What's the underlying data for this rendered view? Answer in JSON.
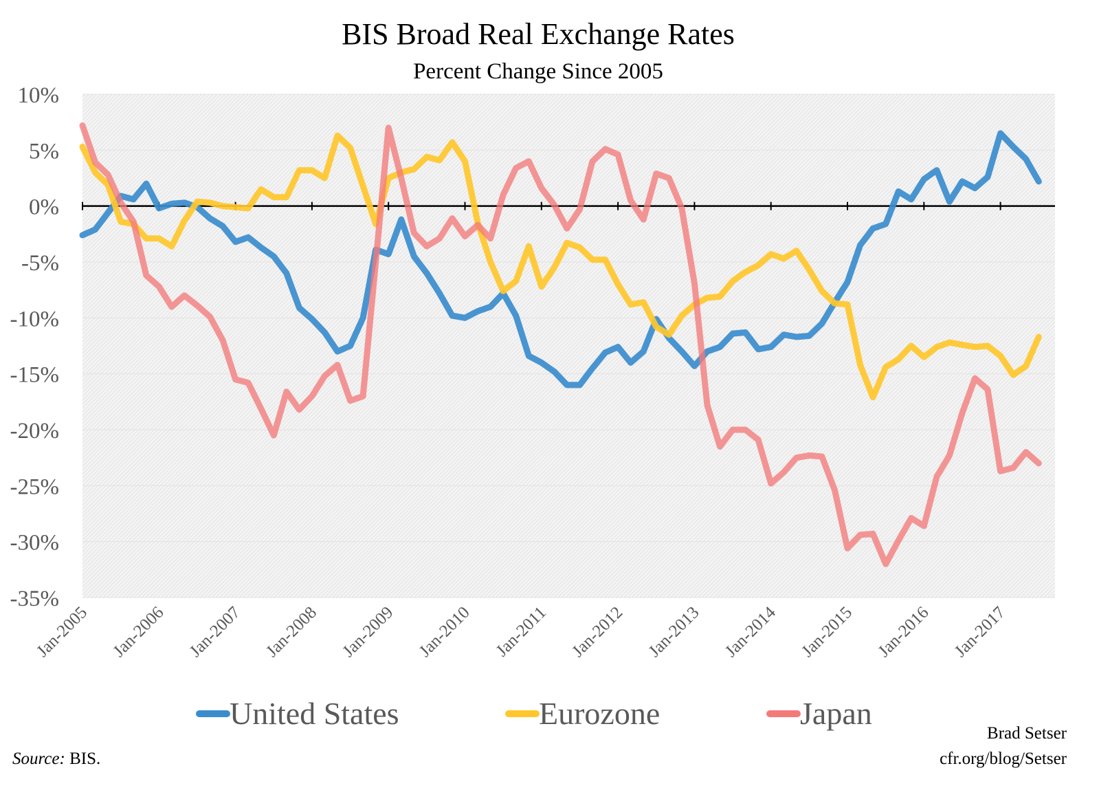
{
  "chart_data": {
    "type": "line",
    "title": "BIS Broad Real Exchange Rates",
    "subtitle": "Percent Change Since 2005",
    "xlabel": "",
    "ylabel": "",
    "ylim": [
      -35,
      10
    ],
    "y_ticks": [
      "10%",
      "5%",
      "0%",
      "-5%",
      "-10%",
      "-15%",
      "-20%",
      "-25%",
      "-30%",
      "-35%"
    ],
    "y_tick_values": [
      10,
      5,
      0,
      -5,
      -10,
      -15,
      -20,
      -25,
      -30,
      -35
    ],
    "x_ticks": [
      "Jan-2005",
      "Jan-2006",
      "Jan-2007",
      "Jan-2008",
      "Jan-2009",
      "Jan-2010",
      "Jan-2011",
      "Jan-2012",
      "Jan-2013",
      "Jan-2014",
      "Jan-2015",
      "Jan-2016",
      "Jan-2017"
    ],
    "grid": true,
    "background": "hatched light gray",
    "legend_position": "bottom",
    "x": [
      "2005-01",
      "2005-03",
      "2005-05",
      "2005-07",
      "2005-09",
      "2005-11",
      "2006-01",
      "2006-03",
      "2006-05",
      "2006-07",
      "2006-09",
      "2006-11",
      "2007-01",
      "2007-03",
      "2007-05",
      "2007-07",
      "2007-09",
      "2007-11",
      "2008-01",
      "2008-03",
      "2008-05",
      "2008-07",
      "2008-09",
      "2008-11",
      "2009-01",
      "2009-03",
      "2009-05",
      "2009-07",
      "2009-09",
      "2009-11",
      "2010-01",
      "2010-03",
      "2010-05",
      "2010-07",
      "2010-09",
      "2010-11",
      "2011-01",
      "2011-03",
      "2011-05",
      "2011-07",
      "2011-09",
      "2011-11",
      "2012-01",
      "2012-03",
      "2012-05",
      "2012-07",
      "2012-09",
      "2012-11",
      "2013-01",
      "2013-03",
      "2013-05",
      "2013-07",
      "2013-09",
      "2013-11",
      "2014-01",
      "2014-03",
      "2014-05",
      "2014-07",
      "2014-09",
      "2014-11",
      "2015-01",
      "2015-03",
      "2015-05",
      "2015-07",
      "2015-09",
      "2015-11",
      "2016-01",
      "2016-03",
      "2016-05",
      "2016-07",
      "2016-09",
      "2016-11",
      "2017-01",
      "2017-03",
      "2017-05",
      "2017-07"
    ],
    "series": [
      {
        "name": "United States",
        "color": "#3a8ccd",
        "values": [
          -2.6,
          -2.1,
          -0.6,
          0.9,
          0.6,
          2.0,
          -0.2,
          0.2,
          0.3,
          -0.1,
          -1.1,
          -1.8,
          -3.2,
          -2.8,
          -3.7,
          -4.5,
          -6.0,
          -9.1,
          -10.1,
          -11.3,
          -13.0,
          -12.5,
          -10.0,
          -3.9,
          -4.3,
          -1.2,
          -4.5,
          -6.0,
          -7.8,
          -9.8,
          -10.0,
          -9.4,
          -9.0,
          -7.8,
          -9.8,
          -13.4,
          -14.0,
          -14.8,
          -16.0,
          -16.0,
          -14.5,
          -13.1,
          -12.6,
          -14.0,
          -13.0,
          -10.1,
          -11.8,
          -13.0,
          -14.3,
          -13.0,
          -12.6,
          -11.4,
          -11.3,
          -12.8,
          -12.6,
          -11.5,
          -11.7,
          -11.6,
          -10.5,
          -8.6,
          -6.8,
          -3.5,
          -2.0,
          -1.6,
          1.3,
          0.6,
          2.4,
          3.2,
          0.4,
          2.2,
          1.6,
          2.6,
          6.5,
          5.3,
          4.2,
          2.2
        ]
      },
      {
        "name": "Eurozone",
        "color": "#ffc72c",
        "values": [
          5.3,
          3.0,
          1.9,
          -1.4,
          -1.6,
          -2.9,
          -2.9,
          -3.6,
          -1.3,
          0.4,
          0.3,
          0.0,
          -0.1,
          -0.2,
          1.5,
          0.8,
          0.8,
          3.2,
          3.2,
          2.5,
          6.3,
          5.2,
          1.8,
          -1.6,
          2.5,
          3.0,
          3.3,
          4.4,
          4.1,
          5.7,
          4.0,
          -1.5,
          -5.0,
          -7.6,
          -6.7,
          -3.6,
          -7.2,
          -5.5,
          -3.3,
          -3.7,
          -4.8,
          -4.8,
          -7.0,
          -8.8,
          -8.6,
          -10.8,
          -11.5,
          -9.8,
          -8.8,
          -8.2,
          -8.1,
          -6.7,
          -5.9,
          -5.3,
          -4.3,
          -4.7,
          -4.0,
          -5.7,
          -7.6,
          -8.7,
          -8.8,
          -14.2,
          -17.1,
          -14.4,
          -13.7,
          -12.5,
          -13.5,
          -12.6,
          -12.2,
          -12.4,
          -12.6,
          -12.5,
          -13.4,
          -15.1,
          -14.3,
          -11.7
        ]
      },
      {
        "name": "Japan",
        "color": "#f47a7a",
        "values": [
          7.2,
          3.9,
          2.8,
          0.3,
          -1.4,
          -6.2,
          -7.2,
          -9.0,
          -8.0,
          -8.9,
          -9.9,
          -12.0,
          -15.5,
          -15.8,
          -18.1,
          -20.5,
          -16.6,
          -18.2,
          -17.0,
          -15.2,
          -14.2,
          -17.4,
          -17.0,
          -5.0,
          7.0,
          2.5,
          -2.4,
          -3.6,
          -2.9,
          -1.1,
          -2.7,
          -1.7,
          -2.9,
          1.0,
          3.4,
          4.0,
          1.6,
          0.1,
          -2.0,
          -0.3,
          4.0,
          5.1,
          4.6,
          0.5,
          -1.2,
          2.9,
          2.5,
          -0.2,
          -6.9,
          -17.8,
          -21.5,
          -20.0,
          -20.0,
          -20.9,
          -24.8,
          -23.8,
          -22.5,
          -22.3,
          -22.4,
          -25.4,
          -30.6,
          -29.4,
          -29.3,
          -32.0,
          -29.9,
          -27.9,
          -28.6,
          -24.2,
          -22.3,
          -18.5,
          -15.4,
          -16.4,
          -23.7,
          -23.4,
          -22.0,
          -23.0
        ]
      }
    ]
  },
  "credits": {
    "author": "Brad Setser",
    "url": "cfr.org/blog/Setser",
    "source_label": "Source:",
    "source_value": " BIS."
  }
}
